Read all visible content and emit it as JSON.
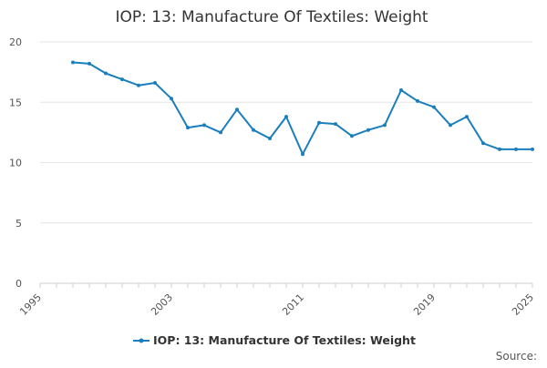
{
  "chart_data": {
    "type": "line",
    "title": "IOP: 13: Manufacture Of Textiles: Weight",
    "xlabel": "",
    "ylabel": "",
    "x_ticks": [
      "1995",
      "2003",
      "2011",
      "2019",
      "2025"
    ],
    "y_ticks": [
      "0",
      "5",
      "10",
      "15",
      "20"
    ],
    "xlim": [
      1995,
      2025
    ],
    "ylim": [
      0,
      20
    ],
    "grid": true,
    "legend_position": "bottom",
    "series": [
      {
        "name": "IOP: 13: Manufacture Of Textiles: Weight",
        "color": "#1b7fbd",
        "x": [
          1997,
          1998,
          1999,
          2000,
          2001,
          2002,
          2003,
          2004,
          2005,
          2006,
          2007,
          2008,
          2009,
          2010,
          2011,
          2012,
          2013,
          2014,
          2015,
          2016,
          2017,
          2018,
          2019,
          2020,
          2021,
          2022,
          2023,
          2024,
          2025
        ],
        "y": [
          18.3,
          18.2,
          17.4,
          16.9,
          16.4,
          16.6,
          15.3,
          12.9,
          13.1,
          12.5,
          14.4,
          12.7,
          12.0,
          13.8,
          10.7,
          13.3,
          13.2,
          12.2,
          12.7,
          13.1,
          16.0,
          15.1,
          14.6,
          13.1,
          13.8,
          11.6,
          11.1,
          11.1,
          11.1
        ]
      }
    ]
  },
  "footer": {
    "source_label": "Source:"
  }
}
